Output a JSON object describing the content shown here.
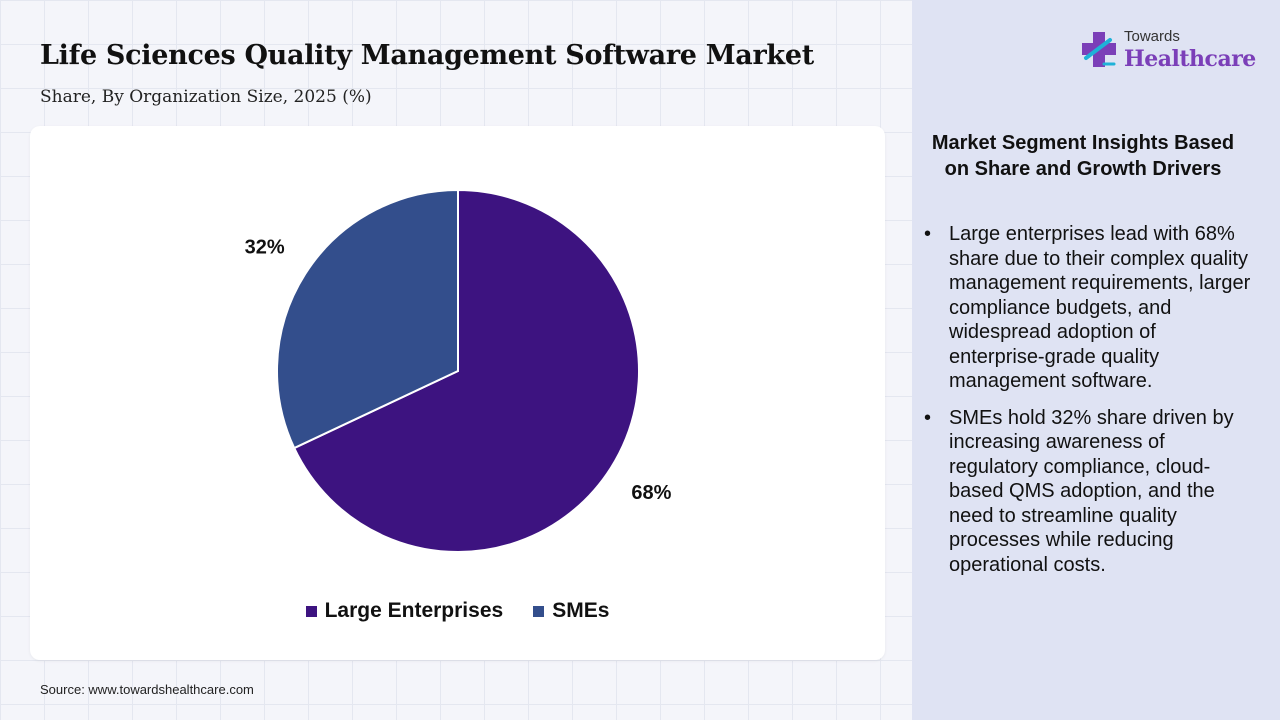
{
  "header": {
    "title": "Life Sciences Quality Management Software Market",
    "subtitle": "Share, By Organization Size, 2025 (%)"
  },
  "logo": {
    "top_text": "Towards",
    "main_text": "Healthcare"
  },
  "chart_data": {
    "type": "pie",
    "categories": [
      "Large Enterprises",
      "SMEs"
    ],
    "values": [
      68,
      32
    ],
    "data_labels": [
      "68%",
      "32%"
    ],
    "colors": [
      "#3d1380",
      "#334e8c"
    ],
    "legend_position": "bottom"
  },
  "source": "Source: www.towardshealthcare.com",
  "insights": {
    "heading": "Market Segment Insights Based on Share and Growth Drivers",
    "bullets": [
      "Large enterprises lead with 68% share due to their complex quality management requirements, larger compliance budgets, and widespread adoption of enterprise-grade quality management software.",
      "SMEs hold 32% share driven by increasing awareness of regulatory compliance, cloud-based QMS adoption, and the need to streamline quality processes while reducing operational costs."
    ]
  },
  "colors": {
    "accent": "#7b3fb8",
    "panel": "#dfe3f3"
  }
}
